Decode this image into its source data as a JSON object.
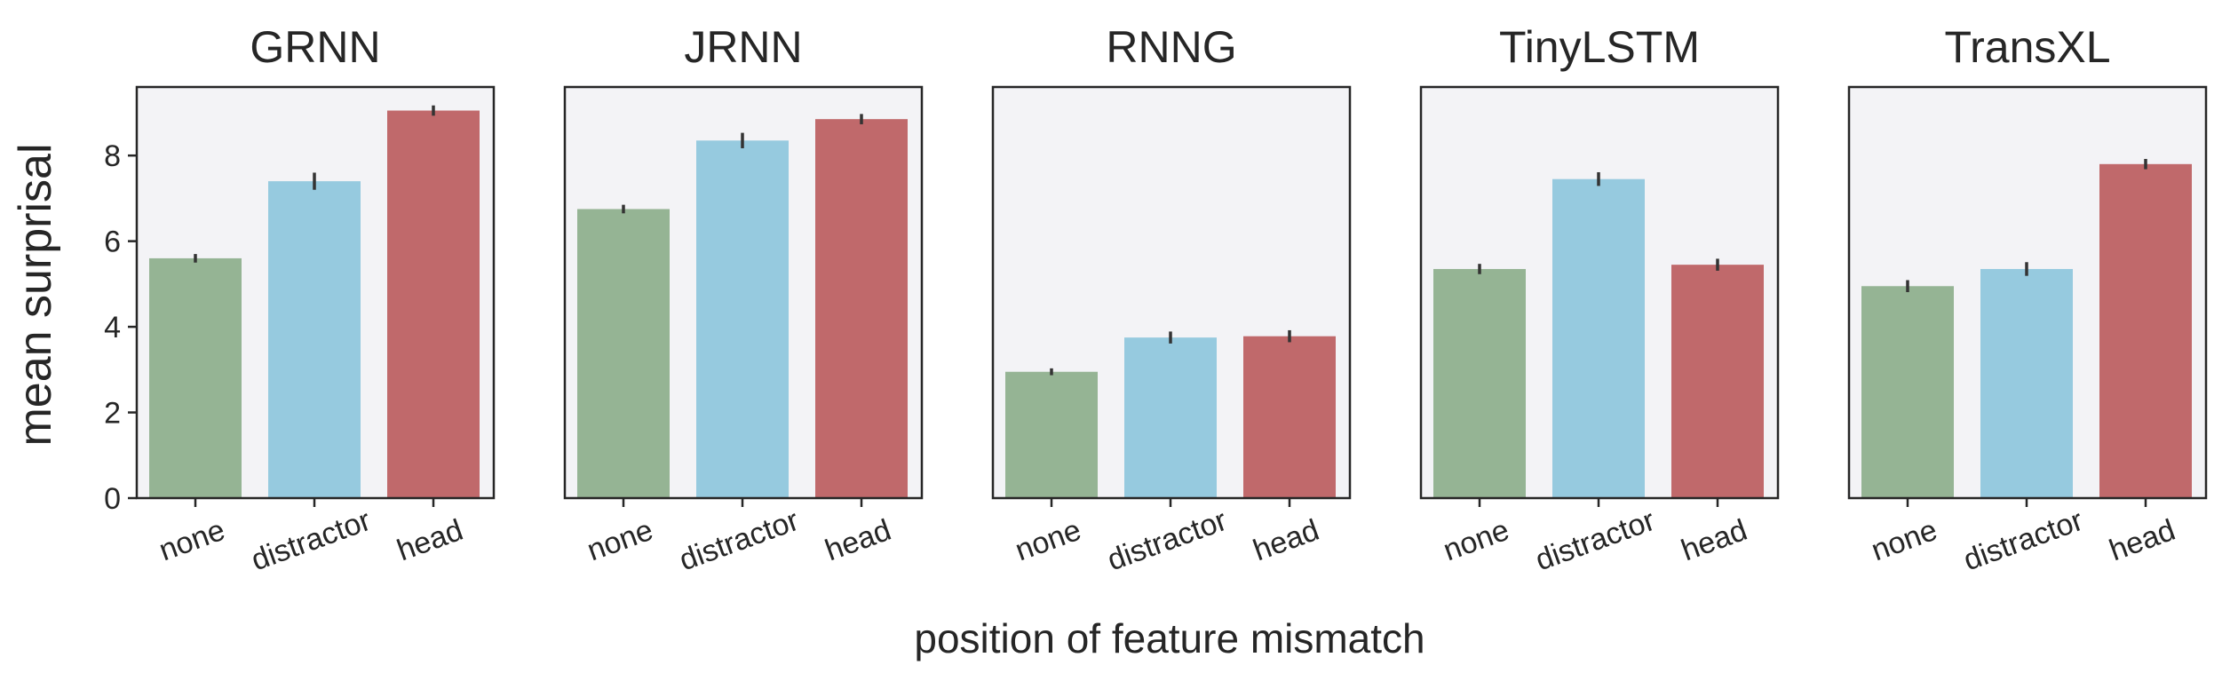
{
  "chart_data": {
    "type": "bar",
    "xlabel": "position of feature mismatch",
    "ylabel": "mean surprisal",
    "ylim": [
      0,
      9.6
    ],
    "yticks": [
      0,
      2,
      4,
      6,
      8
    ],
    "categories": [
      "none",
      "distractor",
      "head"
    ],
    "colors": {
      "none": "#95b494",
      "distractor": "#96cadf",
      "head": "#c0696b"
    },
    "panel_background": "#f3f3f6",
    "grid": false,
    "panels": [
      {
        "title": "GRNN",
        "values": [
          5.6,
          7.4,
          9.05
        ],
        "errors": [
          0.1,
          0.2,
          0.12
        ]
      },
      {
        "title": "JRNN",
        "values": [
          6.75,
          8.35,
          8.85
        ],
        "errors": [
          0.1,
          0.18,
          0.12
        ]
      },
      {
        "title": "RNNG",
        "values": [
          2.95,
          3.75,
          3.78
        ],
        "errors": [
          0.08,
          0.14,
          0.14
        ]
      },
      {
        "title": "TinyLSTM",
        "values": [
          5.35,
          7.45,
          5.45
        ],
        "errors": [
          0.12,
          0.16,
          0.14
        ]
      },
      {
        "title": "TransXL",
        "values": [
          4.95,
          5.35,
          7.8
        ],
        "errors": [
          0.14,
          0.16,
          0.12
        ]
      }
    ]
  }
}
